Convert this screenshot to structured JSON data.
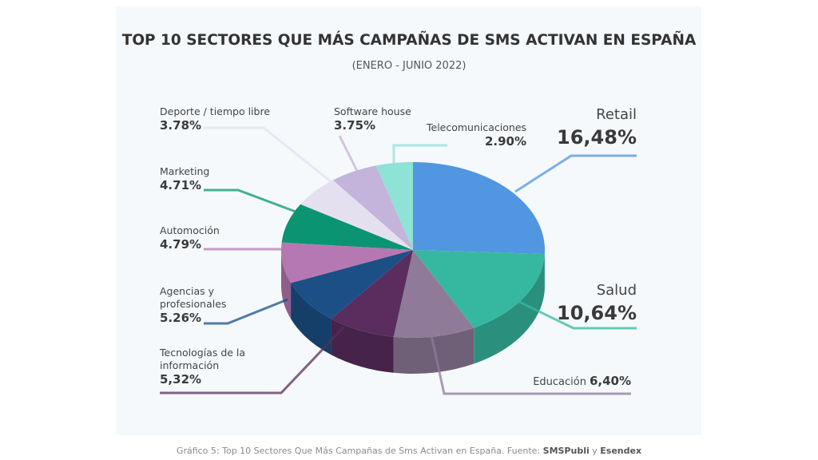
{
  "chart_data": {
    "type": "pie",
    "title": "TOP 10 SECTORES QUE MÁS CAMPAÑAS DE SMS ACTIVAN EN ESPAÑA",
    "subtitle": "(ENERO - JUNIO 2022)",
    "categories": [
      "Retail",
      "Salud",
      "Educación",
      "Tecnologías de la información",
      "Agencias y profesionales",
      "Automoción",
      "Marketing",
      "Deporte / tiempo libre",
      "Software house",
      "Telecomunicaciones"
    ],
    "values": [
      16.48,
      10.64,
      6.4,
      5.32,
      5.26,
      4.79,
      4.71,
      3.78,
      3.75,
      2.9
    ],
    "value_labels": [
      "16,48%",
      "10,64%",
      "6,40%",
      "5,32%",
      "5.26%",
      "4.79%",
      "4.71%",
      "3.78%",
      "3.75%",
      "2.90%"
    ],
    "colors": [
      "#5096e0",
      "#36b8a0",
      "#8f7b99",
      "#5a2d5e",
      "#1b4f86",
      "#b678b2",
      "#0b9472",
      "#e4e0f0",
      "#c4b3da",
      "#8ee2d6"
    ],
    "caption": [
      "Gráfico 5: Top 10 Sectores Que Más Campañas de Sms Activan en España. Fuente: ",
      "SMSPubli",
      " y ",
      "Esendex"
    ]
  }
}
